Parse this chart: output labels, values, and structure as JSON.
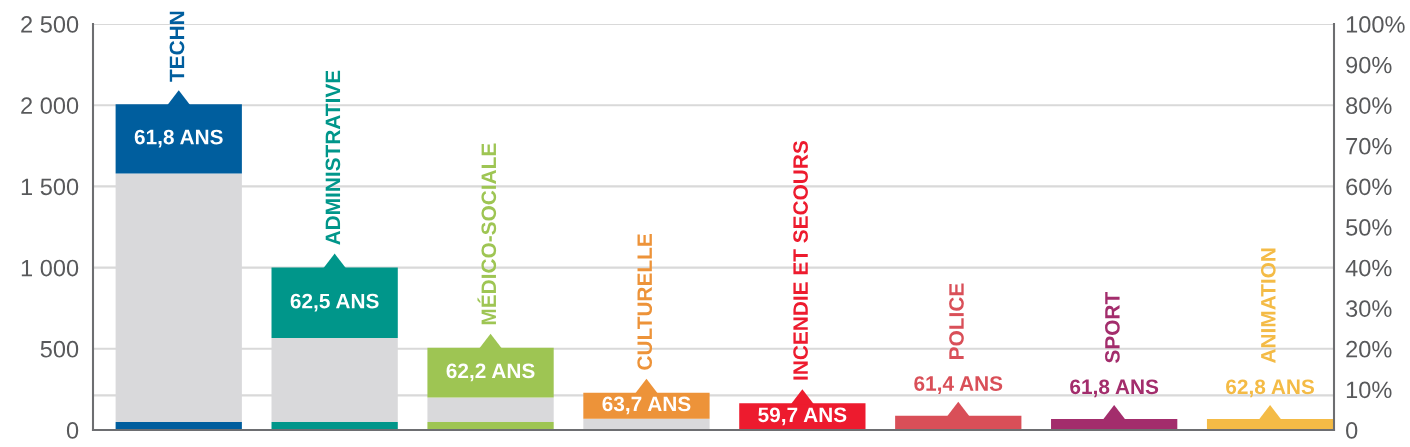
{
  "chart_data": {
    "type": "bar",
    "stacked": true,
    "categories": [
      "TECHN",
      "ADMINISTRATIVE",
      "MÉDICO-SOCIALE",
      "CULTURELLE",
      "INCENDIE ET SECOURS",
      "POLICE",
      "SPORT",
      "ANIMATION"
    ],
    "series": [
      {
        "colors": [
          "#005e9e",
          "#00968a",
          "#9ec553",
          "#ed9339",
          "#ed1b2e",
          "#d94f58",
          "#a32d6c",
          "#f4bb46"
        ],
        "values": [
          50,
          50,
          50,
          null,
          null,
          null,
          null,
          null
        ]
      },
      {
        "color": "#d9d9db",
        "values": [
          1530,
          516,
          150,
          70,
          null,
          null,
          null,
          null
        ]
      },
      {
        "colors": [
          "#005e9e",
          "#00968a",
          "#9ec553",
          "#ed9339",
          "#ed1b2e",
          "#d94f58",
          "#a32d6c",
          "#f4bb46"
        ],
        "values": [
          426,
          434,
          306,
          159,
          165,
          87,
          67,
          67
        ]
      }
    ],
    "ylim": [
      0,
      2500
    ],
    "yticks": [
      0,
      500,
      {
        "value": 1000,
        "label": "1 000"
      },
      {
        "value": 1500,
        "label": "1 500"
      },
      {
        "value": 2000,
        "label": "2 000"
      },
      {
        "value": 2500,
        "label": "2 500"
      }
    ],
    "y2lim": [
      0,
      100
    ],
    "y2ticks": [
      0,
      {
        "value": 10,
        "label": "10%"
      },
      {
        "value": 20,
        "label": "20%"
      },
      {
        "value": 30,
        "label": "30%"
      },
      {
        "value": 40,
        "label": "40%"
      },
      {
        "value": 50,
        "label": "50%"
      },
      {
        "value": 60,
        "label": "60%"
      },
      {
        "value": 70,
        "label": "70%"
      },
      {
        "value": 80,
        "label": "80%"
      },
      {
        "value": 90,
        "label": "90%"
      },
      {
        "value": 100,
        "label": "100%"
      }
    ],
    "grid": "y",
    "ref_lines": [
      {
        "axis": "y",
        "value": 213,
        "color": "#d9d9d9"
      }
    ],
    "annotations": [
      "61,8 ANS",
      "62,5 ANS",
      "62,2 ANS",
      "63,7 ANS",
      "59,7 ANS",
      "61,4 ANS",
      "61,8 ANS",
      "62,8 ANS"
    ]
  }
}
